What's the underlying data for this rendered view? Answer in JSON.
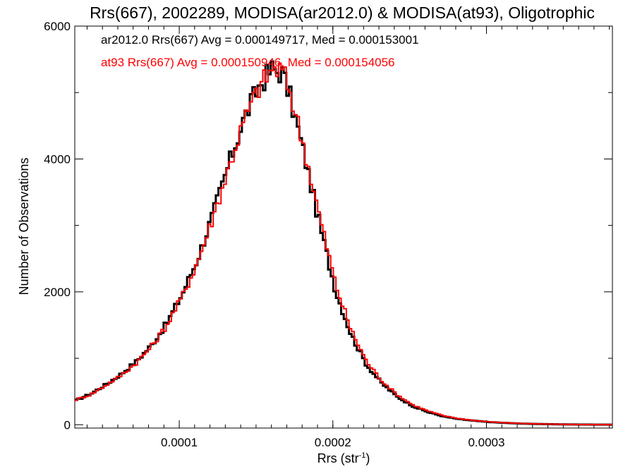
{
  "chart_data": {
    "type": "line",
    "style": "histogram-step",
    "title": "Rrs(667), 2002289, MODISA(ar2012.0) & MODISA(at93), Oligotrophic",
    "xlabel_main": "Rrs (str",
    "xlabel_sup": "-1",
    "xlabel_tail": ")",
    "ylabel": "Number of Observations",
    "xlim": [
      3.2e-05,
      0.000382
    ],
    "ylim": [
      -50,
      6000
    ],
    "x_ticks": [
      0.0001,
      0.0002,
      0.0003
    ],
    "x_tick_labels": [
      "0.0001",
      "0.0002",
      "0.0003"
    ],
    "x_minor_step": 1e-05,
    "y_ticks": [
      0,
      2000,
      4000,
      6000
    ],
    "y_tick_labels": [
      "0",
      "2000",
      "4000",
      "6000"
    ],
    "y_minor_step": 1000,
    "grid": false,
    "annotations": [
      {
        "text": "ar2012.0 Rrs(667) Avg = 0.000149717, Med = 0.000153001",
        "color": "#000000"
      },
      {
        "text": "at93 Rrs(667) Avg = 0.000150946, Med = 0.000154056",
        "color": "#ff0000"
      }
    ],
    "series": [
      {
        "color": "#000000",
        "x": [
          3.2e-05,
          4.2e-05,
          5.2e-05,
          6.2e-05,
          7.2e-05,
          8.2e-05,
          9.2e-05,
          0.000102,
          0.000112,
          0.000122,
          0.000132,
          0.000142,
          0.000152,
          0.00016,
          0.000167,
          0.000172,
          0.000182,
          0.000192,
          0.000202,
          0.000212,
          0.000222,
          0.000232,
          0.000242,
          0.000252,
          0.000262,
          0.000272,
          0.000282,
          0.000292,
          0.000302,
          0.000312,
          0.000322,
          0.000332,
          0.000342,
          0.000352,
          0.000362,
          0.000372,
          0.000382
        ],
        "y": [
          360,
          460,
          600,
          760,
          950,
          1200,
          1530,
          1970,
          2500,
          3170,
          3900,
          4600,
          5100,
          5350,
          5300,
          4950,
          4000,
          2950,
          2000,
          1350,
          900,
          620,
          420,
          280,
          190,
          125,
          85,
          60,
          40,
          28,
          18,
          12,
          8,
          5,
          3,
          2,
          1
        ]
      },
      {
        "color": "#ff0000",
        "x": [
          3.2e-05,
          4.2e-05,
          5.2e-05,
          6.2e-05,
          7.2e-05,
          8.2e-05,
          9.2e-05,
          0.000102,
          0.000112,
          0.000122,
          0.000132,
          0.000142,
          0.000152,
          0.00016,
          0.000167,
          0.000172,
          0.000182,
          0.000192,
          0.000202,
          0.000212,
          0.000222,
          0.000232,
          0.000242,
          0.000252,
          0.000262,
          0.000272,
          0.000282,
          0.000292,
          0.000302,
          0.000312,
          0.000322,
          0.000332,
          0.000342,
          0.000352,
          0.000362,
          0.000372,
          0.000382
        ],
        "y": [
          370,
          450,
          590,
          740,
          930,
          1180,
          1500,
          1930,
          2450,
          3120,
          3850,
          4560,
          5080,
          5340,
          5330,
          5030,
          4100,
          3070,
          2100,
          1420,
          950,
          660,
          450,
          300,
          205,
          135,
          92,
          63,
          43,
          30,
          20,
          13,
          9,
          5,
          3,
          2,
          1
        ]
      }
    ]
  }
}
